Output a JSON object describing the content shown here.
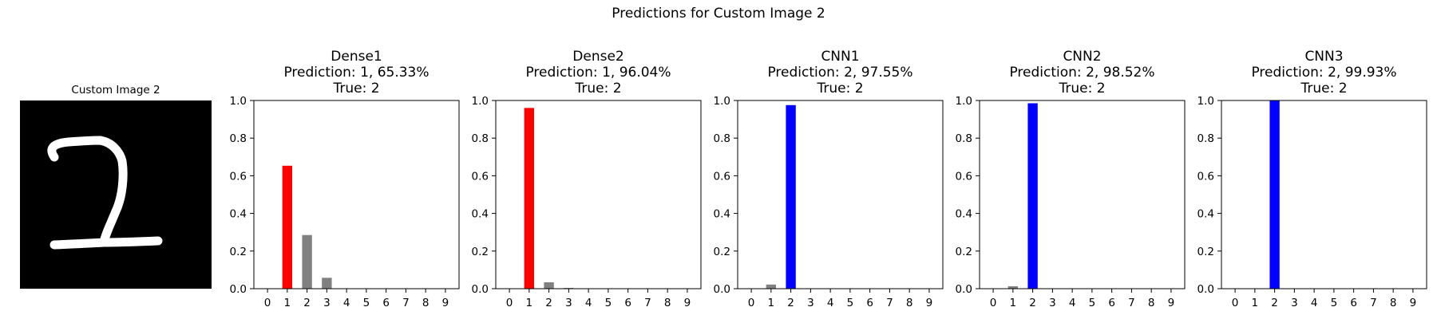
{
  "figure_title": "Predictions for Custom Image 2",
  "image_panel": {
    "title": "Custom Image 2"
  },
  "chart_data": [
    {
      "type": "bar",
      "title_lines": [
        "Dense1",
        "Prediction: 1, 65.33%",
        "True: 2"
      ],
      "categories": [
        "0",
        "1",
        "2",
        "3",
        "4",
        "5",
        "6",
        "7",
        "8",
        "9"
      ],
      "values": [
        0.0,
        0.6533,
        0.285,
        0.058,
        0.002,
        0.0,
        0.0,
        0.0,
        0.0,
        0.0
      ],
      "bar_colors": [
        "#808080",
        "#ff0000",
        "#808080",
        "#808080",
        "#808080",
        "#808080",
        "#808080",
        "#808080",
        "#808080",
        "#808080"
      ],
      "ylim": [
        0,
        1
      ],
      "yticks": [
        "0.0",
        "0.2",
        "0.4",
        "0.6",
        "0.8",
        "1.0"
      ]
    },
    {
      "type": "bar",
      "title_lines": [
        "Dense2",
        "Prediction: 1, 96.04%",
        "True: 2"
      ],
      "categories": [
        "0",
        "1",
        "2",
        "3",
        "4",
        "5",
        "6",
        "7",
        "8",
        "9"
      ],
      "values": [
        0.0,
        0.9604,
        0.034,
        0.004,
        0.0,
        0.0,
        0.0,
        0.0,
        0.0,
        0.0
      ],
      "bar_colors": [
        "#808080",
        "#ff0000",
        "#808080",
        "#808080",
        "#808080",
        "#808080",
        "#808080",
        "#808080",
        "#808080",
        "#808080"
      ],
      "ylim": [
        0,
        1
      ],
      "yticks": [
        "0.0",
        "0.2",
        "0.4",
        "0.6",
        "0.8",
        "1.0"
      ]
    },
    {
      "type": "bar",
      "title_lines": [
        "CNN1",
        "Prediction: 2, 97.55%",
        "True: 2"
      ],
      "categories": [
        "0",
        "1",
        "2",
        "3",
        "4",
        "5",
        "6",
        "7",
        "8",
        "9"
      ],
      "values": [
        0.0,
        0.022,
        0.9755,
        0.0,
        0.0,
        0.0,
        0.0,
        0.0,
        0.0,
        0.0
      ],
      "bar_colors": [
        "#808080",
        "#808080",
        "#0000ff",
        "#808080",
        "#808080",
        "#808080",
        "#808080",
        "#808080",
        "#808080",
        "#808080"
      ],
      "ylim": [
        0,
        1
      ],
      "yticks": [
        "0.0",
        "0.2",
        "0.4",
        "0.6",
        "0.8",
        "1.0"
      ]
    },
    {
      "type": "bar",
      "title_lines": [
        "CNN2",
        "Prediction: 2, 98.52%",
        "True: 2"
      ],
      "categories": [
        "0",
        "1",
        "2",
        "3",
        "4",
        "5",
        "6",
        "7",
        "8",
        "9"
      ],
      "values": [
        0.0,
        0.013,
        0.9852,
        0.0,
        0.0,
        0.0,
        0.0,
        0.0,
        0.0,
        0.0
      ],
      "bar_colors": [
        "#808080",
        "#808080",
        "#0000ff",
        "#808080",
        "#808080",
        "#808080",
        "#808080",
        "#808080",
        "#808080",
        "#808080"
      ],
      "ylim": [
        0,
        1
      ],
      "yticks": [
        "0.0",
        "0.2",
        "0.4",
        "0.6",
        "0.8",
        "1.0"
      ]
    },
    {
      "type": "bar",
      "title_lines": [
        "CNN3",
        "Prediction: 2, 99.93%",
        "True: 2"
      ],
      "categories": [
        "0",
        "1",
        "2",
        "3",
        "4",
        "5",
        "6",
        "7",
        "8",
        "9"
      ],
      "values": [
        0.0,
        0.0,
        0.9993,
        0.0,
        0.0,
        0.0,
        0.0,
        0.0,
        0.0,
        0.0
      ],
      "bar_colors": [
        "#808080",
        "#808080",
        "#0000ff",
        "#808080",
        "#808080",
        "#808080",
        "#808080",
        "#808080",
        "#808080",
        "#808080"
      ],
      "ylim": [
        0,
        1
      ],
      "yticks": [
        "0.0",
        "0.2",
        "0.4",
        "0.6",
        "0.8",
        "1.0"
      ]
    }
  ]
}
